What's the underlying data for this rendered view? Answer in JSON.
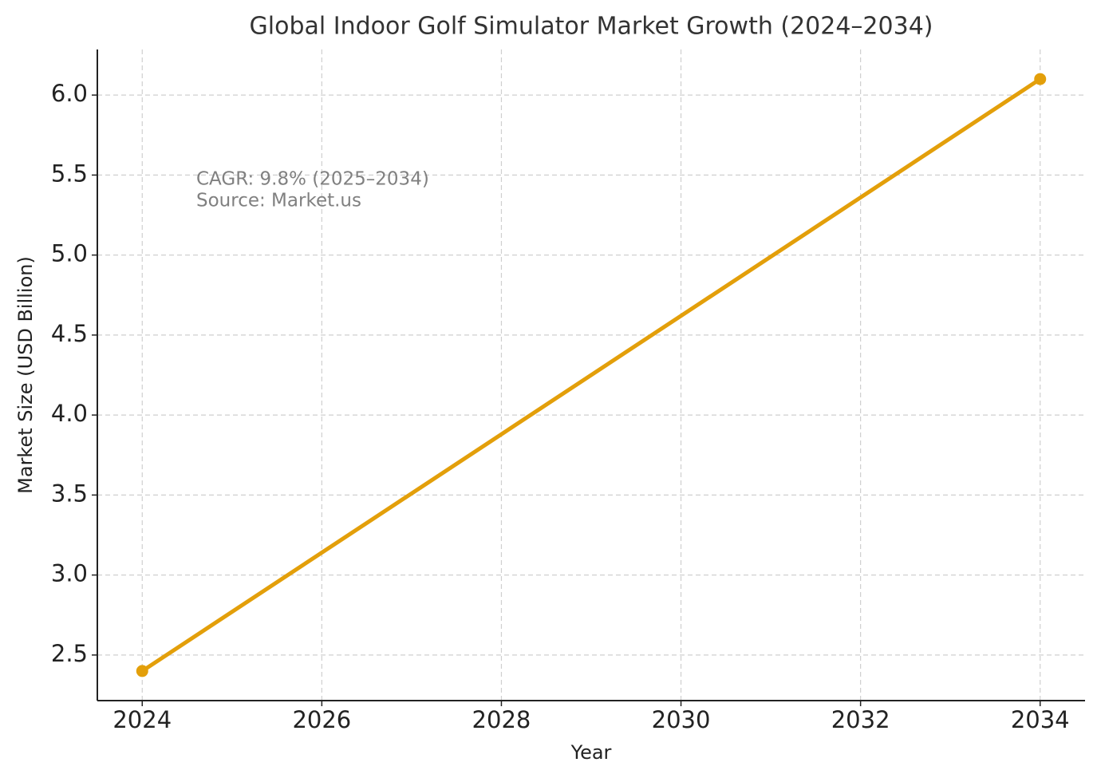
{
  "chart_data": {
    "type": "line",
    "title": "Global Indoor Golf Simulator Market Growth (2024–2034)",
    "x_label": "Year",
    "y_label": "Market Size (USD Billion)",
    "annotation": [
      "CAGR: 9.8% (2025–2034)",
      "Source: Market.us"
    ],
    "x": [
      2024,
      2034
    ],
    "series": [
      {
        "name": "Market Size",
        "color": "#e39f0a",
        "values": [
          2.4,
          6.1
        ]
      }
    ],
    "xlim": [
      2023.5,
      2034.5
    ],
    "xticks": [
      2024,
      2026,
      2028,
      2030,
      2032,
      2034
    ],
    "ylim": [
      2.215,
      6.285
    ],
    "yticks": [
      {
        "value": 2.5,
        "label": "2.5"
      },
      {
        "value": 3,
        "label": "3.0"
      },
      {
        "value": 3.5,
        "label": "3.5"
      },
      {
        "value": 4,
        "label": "4.0"
      },
      {
        "value": 4.5,
        "label": "4.5"
      },
      {
        "value": 5,
        "label": "5.0"
      },
      {
        "value": 5.5,
        "label": "5.5"
      },
      {
        "value": 6,
        "label": "6.0"
      }
    ],
    "grid": true
  }
}
